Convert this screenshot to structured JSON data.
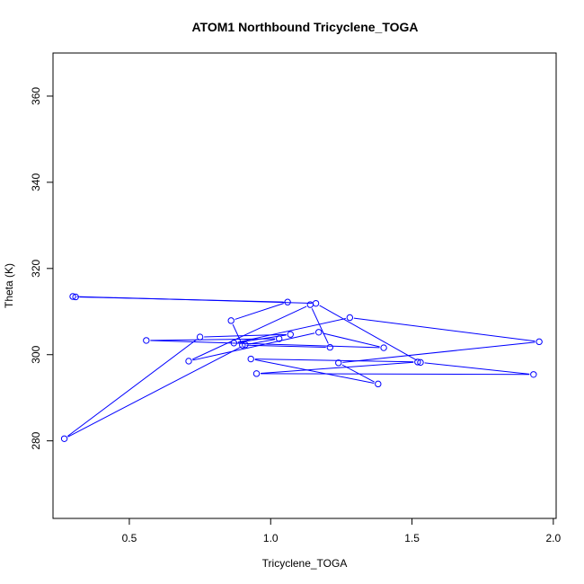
{
  "chart_data": {
    "type": "line",
    "title": "ATOM1 Northbound Tricyclene_TOGA",
    "xlabel": "Tricyclene_TOGA",
    "ylabel": "Theta (K)",
    "xlim": [
      0.23,
      2.01
    ],
    "ylim": [
      262,
      370
    ],
    "xticks": [
      "0.5",
      "1.0",
      "1.5",
      "2.0"
    ],
    "yticks": [
      "280",
      "300",
      "320",
      "340",
      "360"
    ],
    "grid": false,
    "marker": "open-circle",
    "color": "#0000ff",
    "series": [
      {
        "x": [
          0.31,
          1.06,
          0.86,
          0.9,
          1.21,
          1.14,
          0.71,
          1.17,
          1.4,
          0.56,
          1.03,
          0.91,
          0.27,
          0.75,
          1.07,
          0.87,
          1.28,
          1.95,
          1.24,
          1.38,
          0.93,
          1.52,
          0.95,
          1.93,
          1.53,
          1.16,
          0.3
        ],
        "y": [
          313.4,
          312.2,
          307.9,
          302.2,
          301.7,
          311.6,
          298.5,
          305.2,
          301.6,
          303.3,
          303.7,
          302.3,
          280.5,
          304.1,
          304.7,
          302.7,
          308.6,
          303,
          298.1,
          293.2,
          299,
          298.3,
          295.6,
          295.4,
          298.2,
          311.9,
          313.5
        ]
      }
    ]
  }
}
